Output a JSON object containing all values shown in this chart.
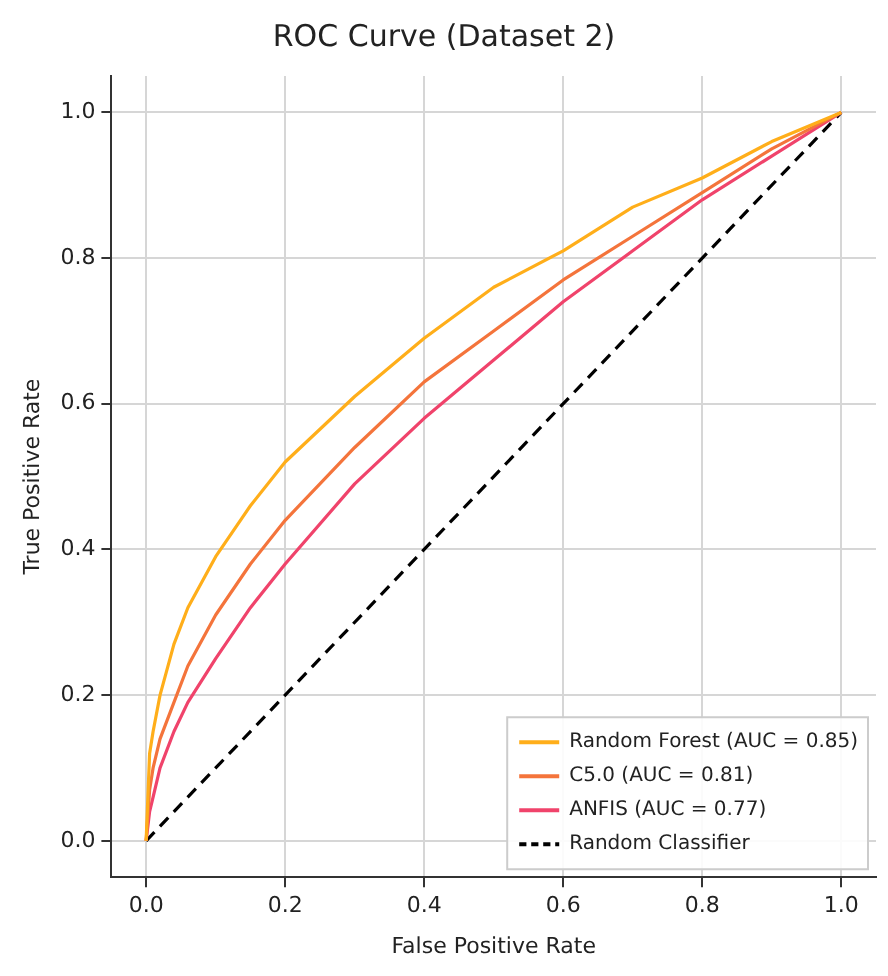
{
  "chart_data": {
    "type": "line",
    "title": "ROC Curve (Dataset 2)",
    "xlabel": "False Positive Rate",
    "ylabel": "True Positive Rate",
    "xlim": [
      -0.05,
      1.05
    ],
    "ylim": [
      -0.05,
      1.05
    ],
    "xticks": [
      {
        "value": 0,
        "label": "0.0"
      },
      0.2,
      0.4,
      0.6,
      0.8,
      {
        "value": 1,
        "label": "1.0"
      }
    ],
    "yticks": [
      {
        "value": 0,
        "label": "0.0"
      },
      0.2,
      0.4,
      0.6,
      0.8,
      {
        "value": 1,
        "label": "1.0"
      }
    ],
    "grid": true,
    "legend": "bottom right",
    "marker": "none",
    "series": [
      {
        "name": "Random Forest (AUC = 0.85)",
        "color": "#ffae1a",
        "line_style": "solid",
        "x": [
          0,
          0.005,
          0.01,
          0.02,
          0.04,
          0.06,
          0.1,
          0.15,
          0.2,
          0.3,
          0.4,
          0.5,
          0.6,
          0.7,
          0.8,
          0.9,
          1
        ],
        "values": [
          0,
          0.12,
          0.15,
          0.2,
          0.27,
          0.32,
          0.39,
          0.46,
          0.52,
          0.61,
          0.69,
          0.76,
          0.81,
          0.87,
          0.91,
          0.96,
          1
        ]
      },
      {
        "name": "C5.0 (AUC = 0.81)",
        "color": "#f4743b",
        "line_style": "solid",
        "x": [
          0,
          0.005,
          0.01,
          0.02,
          0.04,
          0.06,
          0.1,
          0.15,
          0.2,
          0.3,
          0.4,
          0.5,
          0.6,
          0.7,
          0.8,
          0.9,
          1
        ],
        "values": [
          0,
          0.07,
          0.1,
          0.14,
          0.19,
          0.24,
          0.31,
          0.38,
          0.44,
          0.54,
          0.63,
          0.7,
          0.77,
          0.83,
          0.89,
          0.95,
          1
        ]
      },
      {
        "name": "ANFIS (AUC = 0.77)",
        "color": "#f0436b",
        "line_style": "solid",
        "x": [
          0,
          0.005,
          0.01,
          0.02,
          0.04,
          0.06,
          0.1,
          0.15,
          0.2,
          0.3,
          0.4,
          0.5,
          0.6,
          0.7,
          0.8,
          0.9,
          1
        ],
        "values": [
          0,
          0.04,
          0.06,
          0.1,
          0.15,
          0.19,
          0.25,
          0.32,
          0.38,
          0.49,
          0.58,
          0.66,
          0.74,
          0.81,
          0.88,
          0.94,
          1
        ]
      },
      {
        "name": "Random Classifier",
        "color": "#000000",
        "line_style": "dashed",
        "x": [
          0,
          1
        ],
        "values": [
          0,
          1
        ]
      }
    ]
  }
}
